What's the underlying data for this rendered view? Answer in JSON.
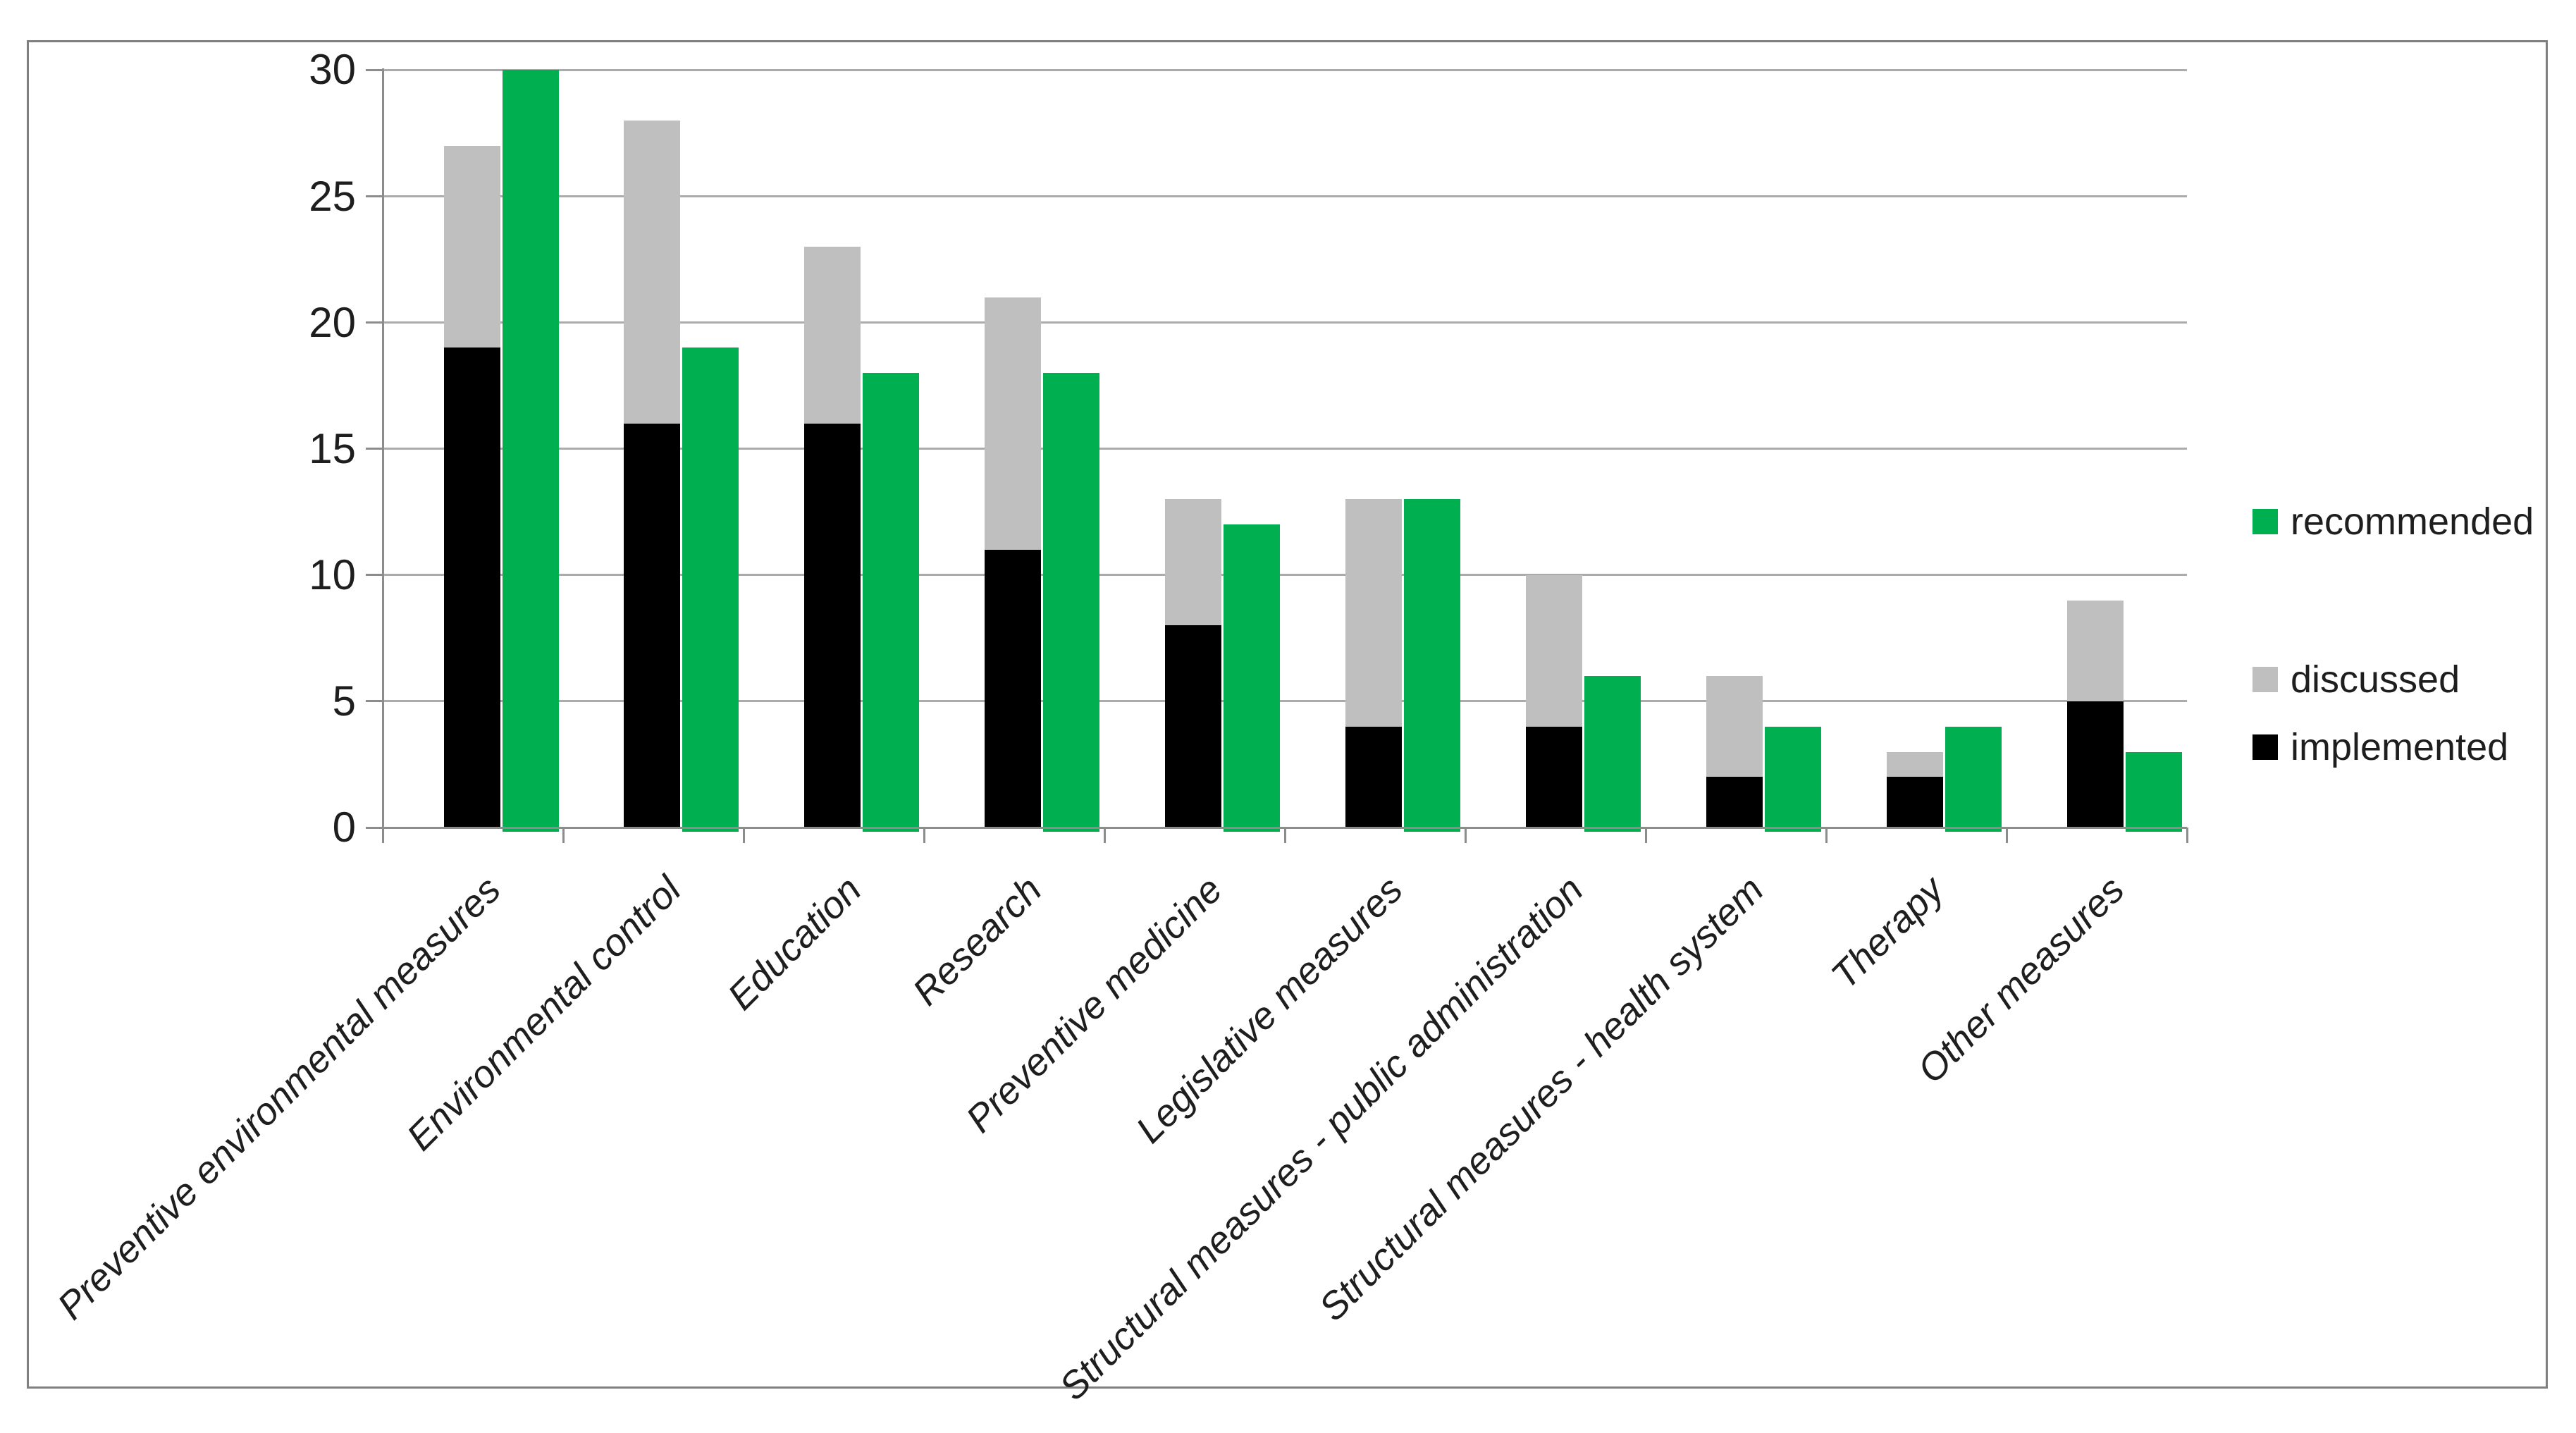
{
  "y_axis": {
    "tick_labels": [
      "30",
      "25",
      "20",
      "15",
      "10",
      "5",
      "0"
    ],
    "min": 0,
    "max": 30,
    "step": 5
  },
  "legend": {
    "items": [
      {
        "label": "recommended",
        "color": "#00B050"
      },
      {
        "label": "discussed",
        "color": "#BFBFBF"
      },
      {
        "label": "implemented",
        "color": "#000000"
      }
    ]
  },
  "chart_data": {
    "type": "bar",
    "subtype": "stacked-implemented-discussed-plus-clustered-recommended",
    "categories": [
      "Preventive environmental measures",
      "Environmental control",
      "Education",
      "Research",
      "Preventive medicine",
      "Legislative measures",
      "Structural measures - public administration",
      "Structural measures - health system",
      "Therapy",
      "Other measures"
    ],
    "series": [
      {
        "name": "implemented",
        "color": "#000000",
        "role": "stack-base",
        "values": [
          19,
          16,
          16,
          11,
          8,
          4,
          4,
          2,
          2,
          5
        ]
      },
      {
        "name": "discussed",
        "color": "#BFBFBF",
        "role": "stack-top-segment",
        "values": [
          8,
          12,
          7,
          10,
          5,
          9,
          6,
          4,
          1,
          4
        ],
        "stack_totals": [
          27,
          28,
          23,
          21,
          13,
          13,
          10,
          6,
          3,
          9
        ]
      },
      {
        "name": "recommended",
        "color": "#00B050",
        "role": "separate-bar",
        "values": [
          30,
          19,
          18,
          18,
          12,
          13,
          6,
          4,
          4,
          3
        ]
      }
    ],
    "title": "",
    "xlabel": "",
    "ylabel": "",
    "ylim": [
      0,
      30
    ],
    "grid": true,
    "gridline_values": [
      5,
      10,
      15,
      20,
      25,
      30
    ],
    "legend_position": "right",
    "category_label_rotation_deg": -45
  }
}
